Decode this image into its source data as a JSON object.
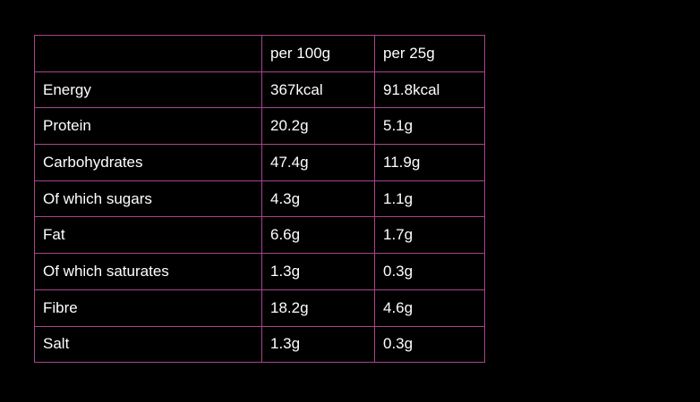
{
  "table": {
    "header": [
      "per 100g",
      "per 25g"
    ],
    "rows": [
      [
        "Energy",
        "367kcal",
        "91.8kcal"
      ],
      [
        "Protein",
        "20.2g",
        "5.1g"
      ],
      [
        "Carbohydrates",
        "47.4g",
        "11.9g"
      ],
      [
        "Of which sugars",
        "4.3g",
        "1.1g"
      ],
      [
        "Fat",
        "6.6g",
        "1.7g"
      ],
      [
        "Of which saturates",
        "1.3g",
        "0.3g"
      ],
      [
        "Fibre",
        "18.2g",
        "4.6g"
      ],
      [
        "Salt",
        "1.3g",
        "0.3g"
      ]
    ]
  }
}
